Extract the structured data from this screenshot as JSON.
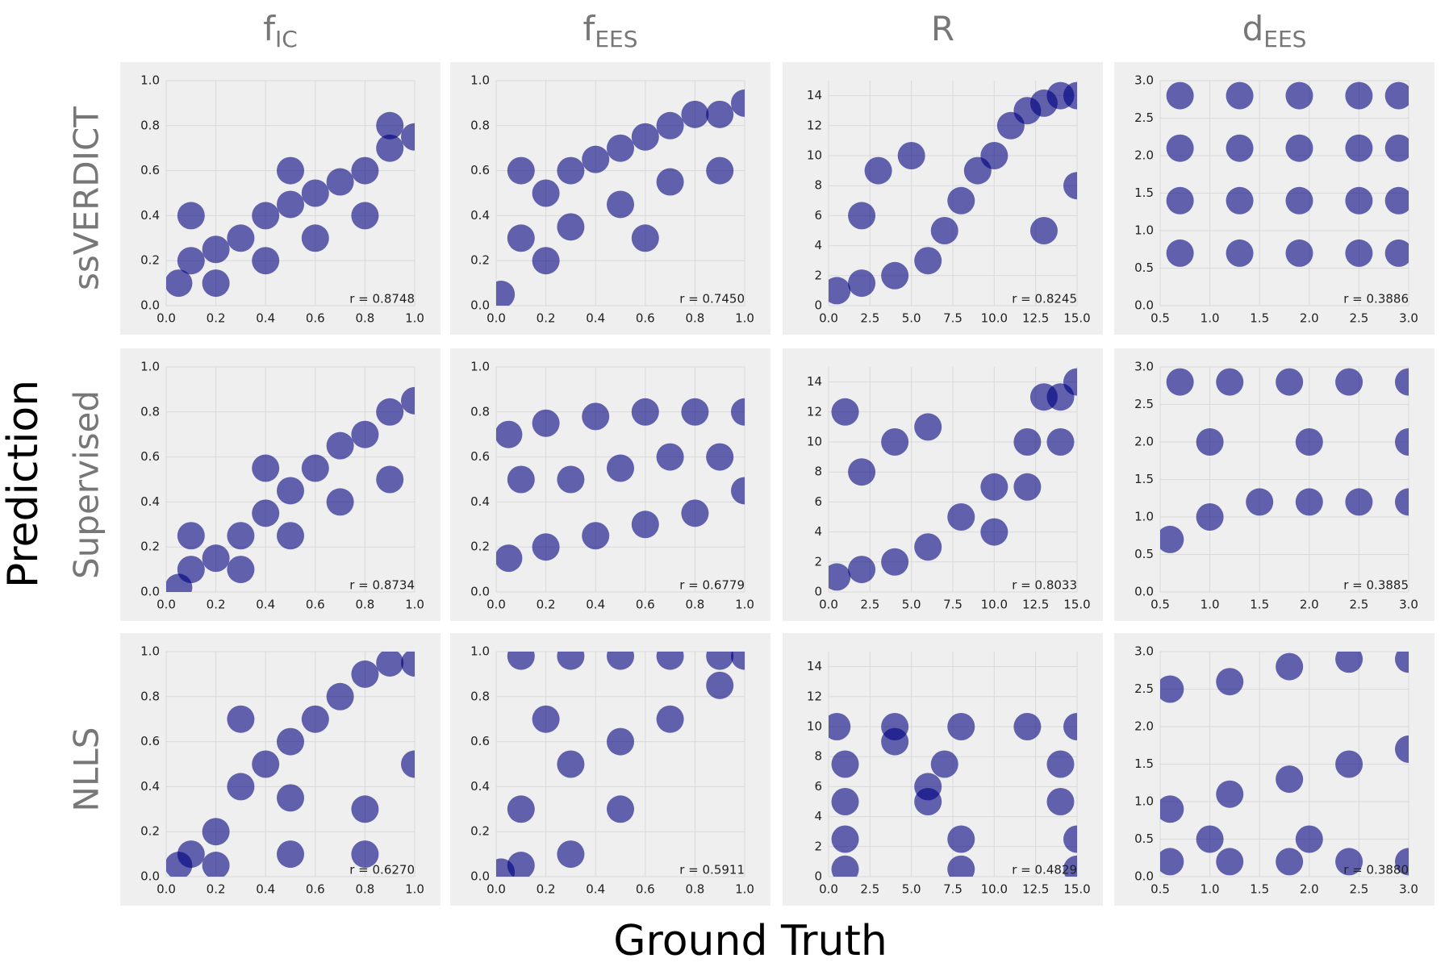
{
  "x_label": "Ground Truth",
  "y_label": "Prediction",
  "row_labels": [
    "ssVERDICT",
    "Supervised",
    "NLLS"
  ],
  "column_titles": [
    {
      "text": "f",
      "subscript": "IC"
    },
    {
      "text": "f",
      "subscript": "EES"
    },
    {
      "text": "R"
    },
    {
      "text": "d",
      "subscript": "EES"
    }
  ],
  "chart_data": [
    {
      "type": "scatter",
      "color": "#000080",
      "annotation": "r = 0.8748",
      "grid": true,
      "xlim": [
        0,
        1
      ],
      "ylim": [
        0,
        1
      ],
      "xticks": [
        {
          "value": 0,
          "label": "0.0"
        },
        0.2,
        0.4,
        0.6,
        0.8,
        {
          "value": 1,
          "label": "1.0"
        }
      ],
      "yticks": [
        {
          "value": 0,
          "label": "0.0"
        },
        0.2,
        0.4,
        0.6,
        0.8,
        {
          "value": 1,
          "label": "1.0"
        }
      ],
      "x": [
        0.05,
        0.1,
        0.2,
        0.3,
        0.4,
        0.5,
        0.6,
        0.7,
        0.8,
        0.9,
        1.0,
        0.2,
        0.4,
        0.6,
        0.8,
        0.1,
        0.5,
        0.9
      ],
      "values": [
        0.1,
        0.2,
        0.25,
        0.3,
        0.4,
        0.45,
        0.5,
        0.55,
        0.6,
        0.7,
        0.75,
        0.1,
        0.2,
        0.3,
        0.4,
        0.4,
        0.6,
        0.8
      ]
    },
    {
      "type": "scatter",
      "color": "#000080",
      "annotation": "r = 0.7450",
      "grid": true,
      "xlim": [
        0,
        1
      ],
      "ylim": [
        0,
        1
      ],
      "xticks": [
        {
          "value": 0,
          "label": "0.0"
        },
        0.2,
        0.4,
        0.6,
        0.8,
        {
          "value": 1,
          "label": "1.0"
        }
      ],
      "yticks": [
        {
          "value": 0,
          "label": "0.0"
        },
        0.2,
        0.4,
        0.6,
        0.8,
        {
          "value": 1,
          "label": "1.0"
        }
      ],
      "x": [
        0.02,
        0.1,
        0.2,
        0.3,
        0.4,
        0.5,
        0.6,
        0.7,
        0.8,
        0.9,
        1.0,
        0.1,
        0.3,
        0.5,
        0.7,
        0.9,
        0.2,
        0.6
      ],
      "values": [
        0.05,
        0.3,
        0.5,
        0.6,
        0.65,
        0.7,
        0.75,
        0.8,
        0.85,
        0.85,
        0.9,
        0.6,
        0.35,
        0.45,
        0.55,
        0.6,
        0.2,
        0.3
      ]
    },
    {
      "type": "scatter",
      "color": "#000080",
      "annotation": "r = 0.8245",
      "grid": true,
      "xlim": [
        0,
        15
      ],
      "ylim": [
        0,
        15
      ],
      "xticks": [
        {
          "value": 0,
          "label": "0.0"
        },
        2.5,
        {
          "value": 5,
          "label": "5.0"
        },
        7.5,
        {
          "value": 10,
          "label": "10.0"
        },
        12.5,
        {
          "value": 15,
          "label": "15.0"
        }
      ],
      "yticks": [
        0,
        2,
        4,
        6,
        8,
        10,
        12,
        14
      ],
      "x": [
        0.5,
        2,
        4,
        6,
        7,
        8,
        9,
        10,
        11,
        12,
        13,
        14,
        15,
        3,
        5,
        13,
        15,
        2
      ],
      "values": [
        1,
        1.5,
        2,
        3,
        5,
        7,
        9,
        10,
        12,
        13,
        13.5,
        14,
        14,
        9,
        10,
        5,
        8,
        6
      ]
    },
    {
      "type": "scatter",
      "color": "#000080",
      "annotation": "r = 0.3886",
      "grid": true,
      "xlim": [
        0.5,
        3
      ],
      "ylim": [
        0,
        3
      ],
      "xticks": [
        0.5,
        {
          "value": 1,
          "label": "1.0"
        },
        1.5,
        {
          "value": 2,
          "label": "2.0"
        },
        2.5,
        {
          "value": 3,
          "label": "3.0"
        }
      ],
      "yticks": [
        {
          "value": 0,
          "label": "0.0"
        },
        0.5,
        {
          "value": 1,
          "label": "1.0"
        },
        1.5,
        {
          "value": 2,
          "label": "2.0"
        },
        2.5,
        {
          "value": 3,
          "label": "3.0"
        }
      ],
      "x": [
        0.7,
        1.3,
        1.9,
        2.5,
        2.9,
        0.7,
        1.3,
        1.9,
        2.5,
        2.9,
        0.7,
        1.3,
        1.9,
        2.5,
        2.9,
        0.7,
        1.3,
        1.9,
        2.5,
        2.9
      ],
      "values": [
        0.7,
        0.7,
        0.7,
        0.7,
        0.7,
        1.4,
        1.4,
        1.4,
        1.4,
        1.4,
        2.1,
        2.1,
        2.1,
        2.1,
        2.1,
        2.8,
        2.8,
        2.8,
        2.8,
        2.8
      ]
    },
    {
      "type": "scatter",
      "color": "#000080",
      "annotation": "r = 0.8734",
      "grid": true,
      "xlim": [
        0,
        1
      ],
      "ylim": [
        0,
        1
      ],
      "xticks": [
        {
          "value": 0,
          "label": "0.0"
        },
        0.2,
        0.4,
        0.6,
        0.8,
        {
          "value": 1,
          "label": "1.0"
        }
      ],
      "yticks": [
        {
          "value": 0,
          "label": "0.0"
        },
        0.2,
        0.4,
        0.6,
        0.8,
        {
          "value": 1,
          "label": "1.0"
        }
      ],
      "x": [
        0.05,
        0.1,
        0.2,
        0.3,
        0.4,
        0.5,
        0.6,
        0.7,
        0.8,
        0.9,
        1.0,
        0.3,
        0.5,
        0.7,
        0.9,
        0.1,
        0.4
      ],
      "values": [
        0.02,
        0.1,
        0.15,
        0.25,
        0.35,
        0.45,
        0.55,
        0.65,
        0.7,
        0.8,
        0.85,
        0.1,
        0.25,
        0.4,
        0.5,
        0.25,
        0.55
      ]
    },
    {
      "type": "scatter",
      "color": "#000080",
      "annotation": "r = 0.6779",
      "grid": true,
      "xlim": [
        0,
        1
      ],
      "ylim": [
        0,
        1
      ],
      "xticks": [
        {
          "value": 0,
          "label": "0.0"
        },
        0.2,
        0.4,
        0.6,
        0.8,
        {
          "value": 1,
          "label": "1.0"
        }
      ],
      "yticks": [
        {
          "value": 0,
          "label": "0.0"
        },
        0.2,
        0.4,
        0.6,
        0.8,
        {
          "value": 1,
          "label": "1.0"
        }
      ],
      "x": [
        0.05,
        0.2,
        0.4,
        0.6,
        0.8,
        1.0,
        0.05,
        0.2,
        0.4,
        0.6,
        0.8,
        1.0,
        0.1,
        0.3,
        0.5,
        0.7,
        0.9
      ],
      "values": [
        0.15,
        0.2,
        0.25,
        0.3,
        0.35,
        0.45,
        0.7,
        0.75,
        0.78,
        0.8,
        0.8,
        0.8,
        0.5,
        0.5,
        0.55,
        0.6,
        0.6
      ]
    },
    {
      "type": "scatter",
      "color": "#000080",
      "annotation": "r = 0.8033",
      "grid": true,
      "xlim": [
        0,
        15
      ],
      "ylim": [
        0,
        15
      ],
      "xticks": [
        {
          "value": 0,
          "label": "0.0"
        },
        2.5,
        {
          "value": 5,
          "label": "5.0"
        },
        7.5,
        {
          "value": 10,
          "label": "10.0"
        },
        12.5,
        {
          "value": 15,
          "label": "15.0"
        }
      ],
      "yticks": [
        0,
        2,
        4,
        6,
        8,
        10,
        12,
        14
      ],
      "x": [
        0.5,
        2,
        4,
        6,
        8,
        10,
        12,
        14,
        15,
        2,
        4,
        6,
        10,
        12,
        14,
        1,
        13
      ],
      "values": [
        1,
        1.5,
        2,
        3,
        5,
        7,
        10,
        13,
        14,
        8,
        10,
        11,
        4,
        7,
        10,
        12,
        13
      ]
    },
    {
      "type": "scatter",
      "color": "#000080",
      "annotation": "r = 0.3885",
      "grid": true,
      "xlim": [
        0.5,
        3
      ],
      "ylim": [
        0,
        3
      ],
      "xticks": [
        0.5,
        {
          "value": 1,
          "label": "1.0"
        },
        1.5,
        {
          "value": 2,
          "label": "2.0"
        },
        2.5,
        {
          "value": 3,
          "label": "3.0"
        }
      ],
      "yticks": [
        {
          "value": 0,
          "label": "0.0"
        },
        0.5,
        {
          "value": 1,
          "label": "1.0"
        },
        1.5,
        {
          "value": 2,
          "label": "2.0"
        },
        2.5,
        {
          "value": 3,
          "label": "3.0"
        }
      ],
      "x": [
        0.6,
        1,
        1.5,
        2,
        2.5,
        3,
        0.7,
        1.2,
        1.8,
        2.4,
        3,
        1,
        2,
        3
      ],
      "values": [
        0.7,
        1,
        1.2,
        1.2,
        1.2,
        1.2,
        2.8,
        2.8,
        2.8,
        2.8,
        2.8,
        2,
        2,
        2
      ]
    },
    {
      "type": "scatter",
      "color": "#000080",
      "annotation": "r = 0.6270",
      "grid": true,
      "xlim": [
        0,
        1
      ],
      "ylim": [
        0,
        1
      ],
      "xticks": [
        {
          "value": 0,
          "label": "0.0"
        },
        0.2,
        0.4,
        0.6,
        0.8,
        {
          "value": 1,
          "label": "1.0"
        }
      ],
      "yticks": [
        {
          "value": 0,
          "label": "0.0"
        },
        0.2,
        0.4,
        0.6,
        0.8,
        {
          "value": 1,
          "label": "1.0"
        }
      ],
      "x": [
        0.05,
        0.1,
        0.2,
        0.3,
        0.4,
        0.5,
        0.6,
        0.7,
        0.8,
        0.9,
        1.0,
        0.2,
        0.5,
        0.8,
        1.0,
        0.5,
        0.8,
        0.3
      ],
      "values": [
        0.05,
        0.1,
        0.2,
        0.4,
        0.5,
        0.6,
        0.7,
        0.8,
        0.9,
        0.95,
        0.95,
        0.05,
        0.1,
        0.1,
        0.5,
        0.35,
        0.3,
        0.7
      ]
    },
    {
      "type": "scatter",
      "color": "#000080",
      "annotation": "r = 0.5911",
      "grid": true,
      "xlim": [
        0,
        1
      ],
      "ylim": [
        0,
        1
      ],
      "xticks": [
        {
          "value": 0,
          "label": "0.0"
        },
        0.2,
        0.4,
        0.6,
        0.8,
        {
          "value": 1,
          "label": "1.0"
        }
      ],
      "yticks": [
        {
          "value": 0,
          "label": "0.0"
        },
        0.2,
        0.4,
        0.6,
        0.8,
        {
          "value": 1,
          "label": "1.0"
        }
      ],
      "x": [
        0.02,
        0.1,
        0.3,
        0.5,
        0.7,
        0.9,
        1.0,
        0.1,
        0.3,
        0.5,
        0.7,
        0.9,
        0.1,
        0.3,
        0.5,
        0.2
      ],
      "values": [
        0.02,
        0.98,
        0.98,
        0.98,
        0.98,
        0.98,
        0.98,
        0.3,
        0.5,
        0.6,
        0.7,
        0.85,
        0.05,
        0.1,
        0.3,
        0.7
      ]
    },
    {
      "type": "scatter",
      "color": "#000080",
      "annotation": "r = 0.4829",
      "grid": true,
      "xlim": [
        0,
        15
      ],
      "ylim": [
        0,
        15
      ],
      "xticks": [
        {
          "value": 0,
          "label": "0.0"
        },
        2.5,
        {
          "value": 5,
          "label": "5.0"
        },
        7.5,
        {
          "value": 10,
          "label": "10.0"
        },
        12.5,
        {
          "value": 15,
          "label": "15.0"
        }
      ],
      "yticks": [
        0,
        2,
        4,
        6,
        8,
        10,
        12,
        14
      ],
      "x": [
        0.5,
        4,
        8,
        12,
        15,
        1,
        7,
        14,
        1,
        6,
        14,
        1,
        8,
        15,
        1,
        8,
        15,
        4,
        6
      ],
      "values": [
        10,
        10,
        10,
        10,
        10,
        7.5,
        7.5,
        7.5,
        5,
        5,
        5,
        2.5,
        2.5,
        2.5,
        0.5,
        0.5,
        0.5,
        9,
        6
      ]
    },
    {
      "type": "scatter",
      "color": "#000080",
      "annotation": "r = 0.3880",
      "grid": true,
      "xlim": [
        0.5,
        3
      ],
      "ylim": [
        0,
        3
      ],
      "xticks": [
        0.5,
        {
          "value": 1,
          "label": "1.0"
        },
        1.5,
        {
          "value": 2,
          "label": "2.0"
        },
        2.5,
        {
          "value": 3,
          "label": "3.0"
        }
      ],
      "yticks": [
        {
          "value": 0,
          "label": "0.0"
        },
        0.5,
        {
          "value": 1,
          "label": "1.0"
        },
        1.5,
        {
          "value": 2,
          "label": "2.0"
        },
        2.5,
        {
          "value": 3,
          "label": "3.0"
        }
      ],
      "x": [
        0.6,
        1.2,
        1.8,
        2.4,
        3,
        0.6,
        1.2,
        1.8,
        2.4,
        3,
        0.6,
        1.2,
        1.8,
        2.4,
        3,
        1,
        2
      ],
      "values": [
        0.2,
        0.2,
        0.2,
        0.2,
        0.2,
        0.9,
        1.1,
        1.3,
        1.5,
        1.7,
        2.5,
        2.6,
        2.8,
        2.9,
        2.9,
        0.5,
        0.5
      ]
    }
  ]
}
